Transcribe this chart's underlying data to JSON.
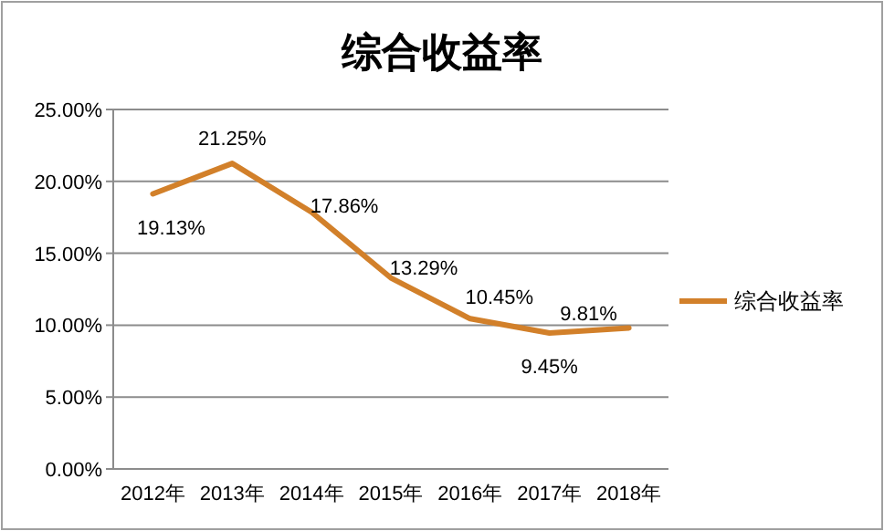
{
  "chart_data": {
    "type": "line",
    "title": "综合收益率",
    "categories": [
      "2012年",
      "2013年",
      "2014年",
      "2015年",
      "2016年",
      "2017年",
      "2018年"
    ],
    "series": [
      {
        "name": "综合收益率",
        "color": "#d2802a",
        "values": [
          19.13,
          21.25,
          17.86,
          13.29,
          10.45,
          9.45,
          9.81
        ],
        "value_labels": [
          "19.13%",
          "21.25%",
          "17.86%",
          "13.29%",
          "10.45%",
          "9.45%",
          "9.81%"
        ]
      }
    ],
    "ylim": [
      0,
      25
    ],
    "yticks": [
      {
        "value": 0,
        "label": "0.00%"
      },
      {
        "value": 5,
        "label": "5.00%"
      },
      {
        "value": 10,
        "label": "10.00%"
      },
      {
        "value": 15,
        "label": "15.00%"
      },
      {
        "value": 20,
        "label": "20.00%"
      },
      {
        "value": 25,
        "label": "25.00%"
      }
    ],
    "grid": "y",
    "legend": "right",
    "marker": "none",
    "line_style": "solid"
  }
}
